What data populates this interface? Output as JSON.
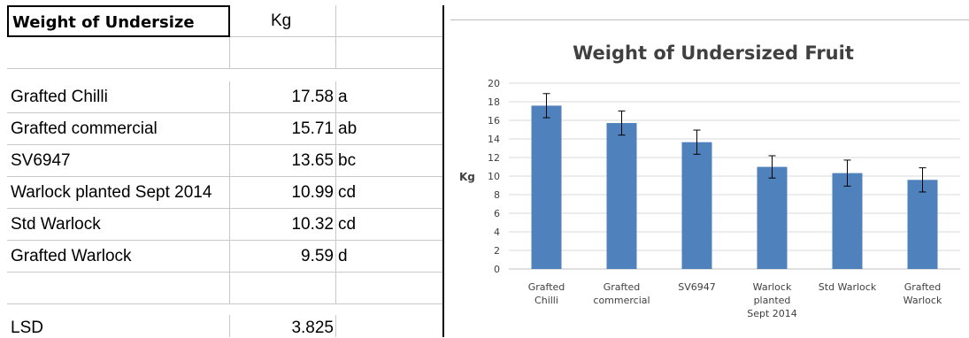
{
  "table": {
    "header": {
      "label": "Weight of Undersize",
      "unit": "Kg"
    },
    "rows": [
      {
        "name": "Grafted Chilli",
        "value": "17.58",
        "group": "a"
      },
      {
        "name": "Grafted commercial",
        "value": "15.71",
        "group": "ab"
      },
      {
        "name": "SV6947",
        "value": "13.65",
        "group": "bc"
      },
      {
        "name": "Warlock planted Sept 2014",
        "value": "10.99",
        "group": "cd"
      },
      {
        "name": "Std Warlock",
        "value": "10.32",
        "group": "cd"
      },
      {
        "name": "Grafted Warlock",
        "value": "9.59",
        "group": "d"
      }
    ],
    "lsd": {
      "label": "LSD",
      "value": "3.825"
    }
  },
  "colors": {
    "bar": "#4f81bd",
    "grid": "#d9d9d9",
    "text": "#404040",
    "frame": "#bfbfbf"
  },
  "chart_data": {
    "type": "bar",
    "title": "Weight of Undersized Fruit",
    "xlabel": "",
    "ylabel": "Kg",
    "ylim": [
      0,
      20
    ],
    "yticks": [
      0,
      2,
      4,
      6,
      8,
      10,
      12,
      14,
      16,
      18,
      20
    ],
    "grid": true,
    "categories": [
      [
        "Grafted",
        "Chilli"
      ],
      [
        "Grafted",
        "commercial"
      ],
      [
        "SV6947"
      ],
      [
        "Warlock",
        "planted",
        "Sept 2014"
      ],
      [
        "Std Warlock"
      ],
      [
        "Grafted",
        "Warlock"
      ]
    ],
    "values": [
      17.58,
      15.71,
      13.65,
      10.99,
      10.32,
      9.59
    ],
    "error_bars": [
      1.3,
      1.3,
      1.3,
      1.2,
      1.4,
      1.3
    ]
  }
}
